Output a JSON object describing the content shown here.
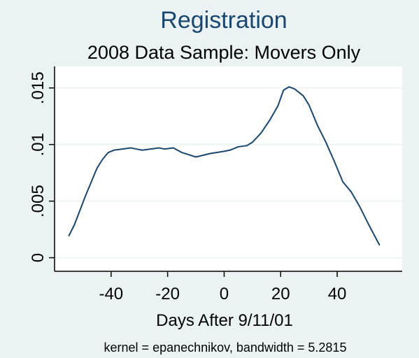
{
  "chart_data": {
    "type": "line",
    "title": "Registration",
    "subtitle": "2008 Data Sample: Movers Only",
    "xlabel": "Days After 9/11/01",
    "note": "kernel = epanechnikov, bandwidth = 5.2815",
    "x": [
      -55,
      -53,
      -51,
      -49,
      -47,
      -45,
      -43,
      -41,
      -39,
      -36,
      -33,
      -31,
      -29,
      -26,
      -23,
      -21,
      -18,
      -15,
      -10,
      -5,
      0,
      2,
      5,
      8,
      10,
      13,
      16,
      19,
      21,
      23,
      25,
      28,
      30,
      33,
      36,
      39,
      42,
      45,
      48,
      51,
      55
    ],
    "values": [
      0.0019,
      0.0029,
      0.0042,
      0.0055,
      0.0067,
      0.0079,
      0.0087,
      0.0093,
      0.0095,
      0.0096,
      0.0097,
      0.0096,
      0.0095,
      0.0096,
      0.0097,
      0.0096,
      0.0097,
      0.0093,
      0.0089,
      0.0092,
      0.0094,
      0.0095,
      0.0098,
      0.0099,
      0.0102,
      0.011,
      0.0121,
      0.0134,
      0.0148,
      0.0151,
      0.0149,
      0.0143,
      0.0135,
      0.0117,
      0.0102,
      0.0085,
      0.0067,
      0.0058,
      0.0045,
      0.003,
      0.0011
    ],
    "color": "#1a476f",
    "xlim": [
      -60,
      63
    ],
    "xticks": [
      -40,
      -20,
      0,
      20,
      40
    ],
    "ylim": [
      -0.0012,
      0.0169
    ],
    "yticks": [
      0,
      {
        "value": 0.005,
        "label": ".005"
      },
      {
        "value": 0.01,
        "label": ".01"
      },
      {
        "value": 0.015,
        "label": ".015"
      }
    ],
    "grid": true
  }
}
